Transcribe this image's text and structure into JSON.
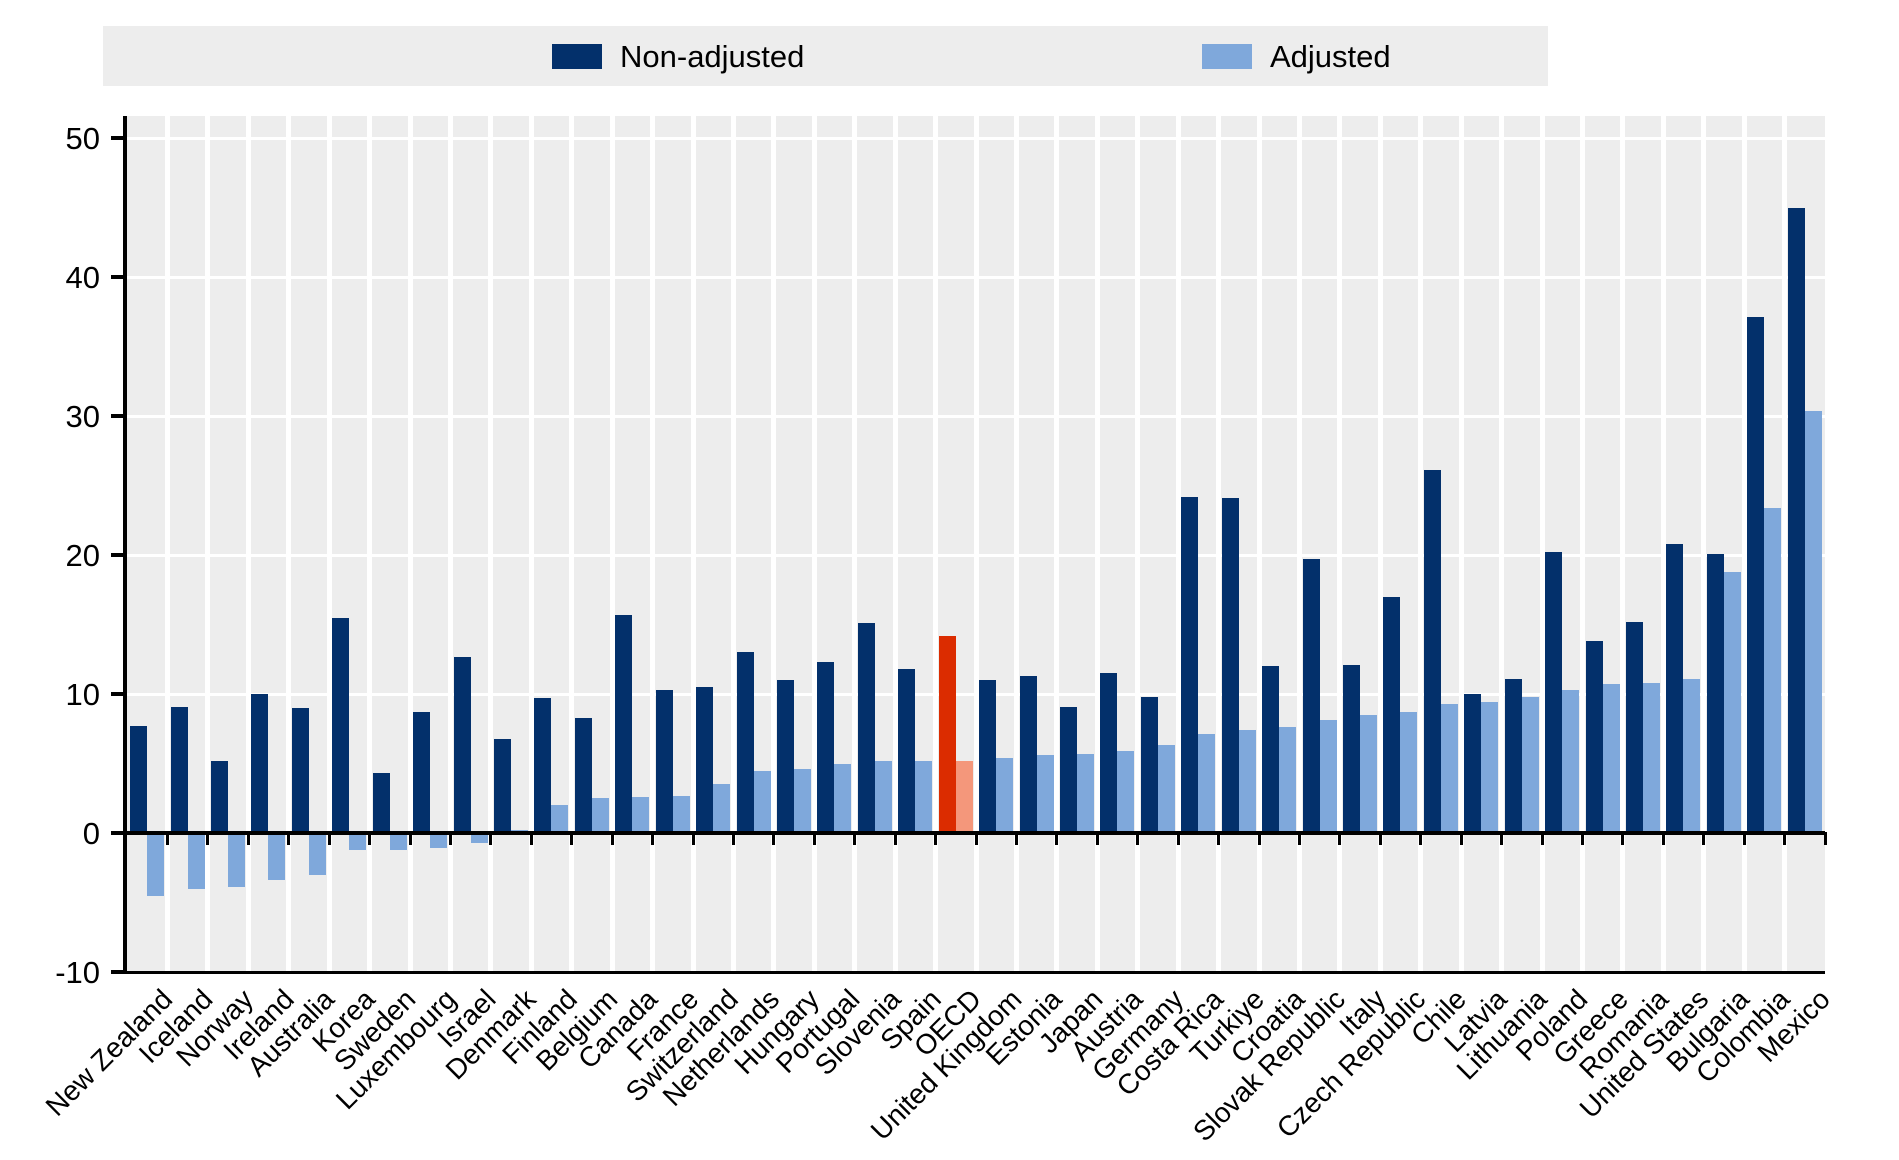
{
  "legend": {
    "non_adjusted_label": "Non-adjusted",
    "adjusted_label": "Adjusted"
  },
  "chart_data": {
    "type": "bar",
    "title": "",
    "xlabel": "",
    "ylabel": "",
    "categories": [
      "New Zealand",
      "Iceland",
      "Norway",
      "Ireland",
      "Australia",
      "Korea",
      "Sweden",
      "Luxembourg",
      "Israel",
      "Denmark",
      "Finland",
      "Belgium",
      "Canada",
      "France",
      "Switzerland",
      "Netherlands",
      "Hungary",
      "Portugal",
      "Slovenia",
      "Spain",
      "OECD",
      "United Kingdom",
      "Estonia",
      "Japan",
      "Austria",
      "Germany",
      "Costa Rica",
      "Turkiye",
      "Croatia",
      "Slovak Republic",
      "Italy",
      "Czech Republic",
      "Chile",
      "Latvia",
      "Lithuania",
      "Poland",
      "Greece",
      "Romania",
      "United States",
      "Bulgaria",
      "Colombia",
      "Mexico"
    ],
    "series": [
      {
        "name": "Non-adjusted",
        "color": "#03306B",
        "highlight_color": "#DB2C00",
        "values": [
          7.7,
          9.1,
          5.2,
          10.0,
          9.0,
          15.5,
          4.3,
          8.7,
          12.7,
          6.8,
          9.7,
          8.3,
          15.7,
          10.3,
          10.5,
          13.0,
          11.0,
          12.3,
          15.1,
          11.8,
          14.2,
          11.0,
          11.3,
          9.1,
          11.5,
          9.8,
          24.2,
          24.1,
          12.0,
          19.7,
          12.1,
          17.0,
          26.1,
          10.0,
          11.1,
          20.2,
          13.8,
          15.2,
          20.8,
          20.1,
          37.1,
          45.0
        ]
      },
      {
        "name": "Adjusted",
        "color": "#7FA8DB",
        "highlight_color": "#F4977B",
        "values": [
          -4.5,
          -4.0,
          -3.9,
          -3.4,
          -3.0,
          -1.2,
          -1.2,
          -1.1,
          -0.7,
          0.2,
          2.0,
          2.5,
          2.6,
          2.7,
          3.5,
          4.5,
          4.6,
          5.0,
          5.2,
          5.2,
          5.2,
          5.4,
          5.6,
          5.7,
          5.9,
          6.3,
          7.1,
          7.4,
          7.6,
          8.1,
          8.5,
          8.7,
          9.3,
          9.4,
          9.8,
          10.3,
          10.7,
          10.8,
          11.1,
          18.8,
          23.4,
          30.4
        ]
      }
    ],
    "highlight_category": "OECD",
    "ylim": [
      -10,
      51.6
    ],
    "yticks": [
      -10,
      0,
      10,
      20,
      30,
      40,
      50
    ],
    "grid": "horizontal white gridlines on gray panel, white column separators",
    "panel_color": "#EDEDED",
    "legend_position": "top"
  }
}
